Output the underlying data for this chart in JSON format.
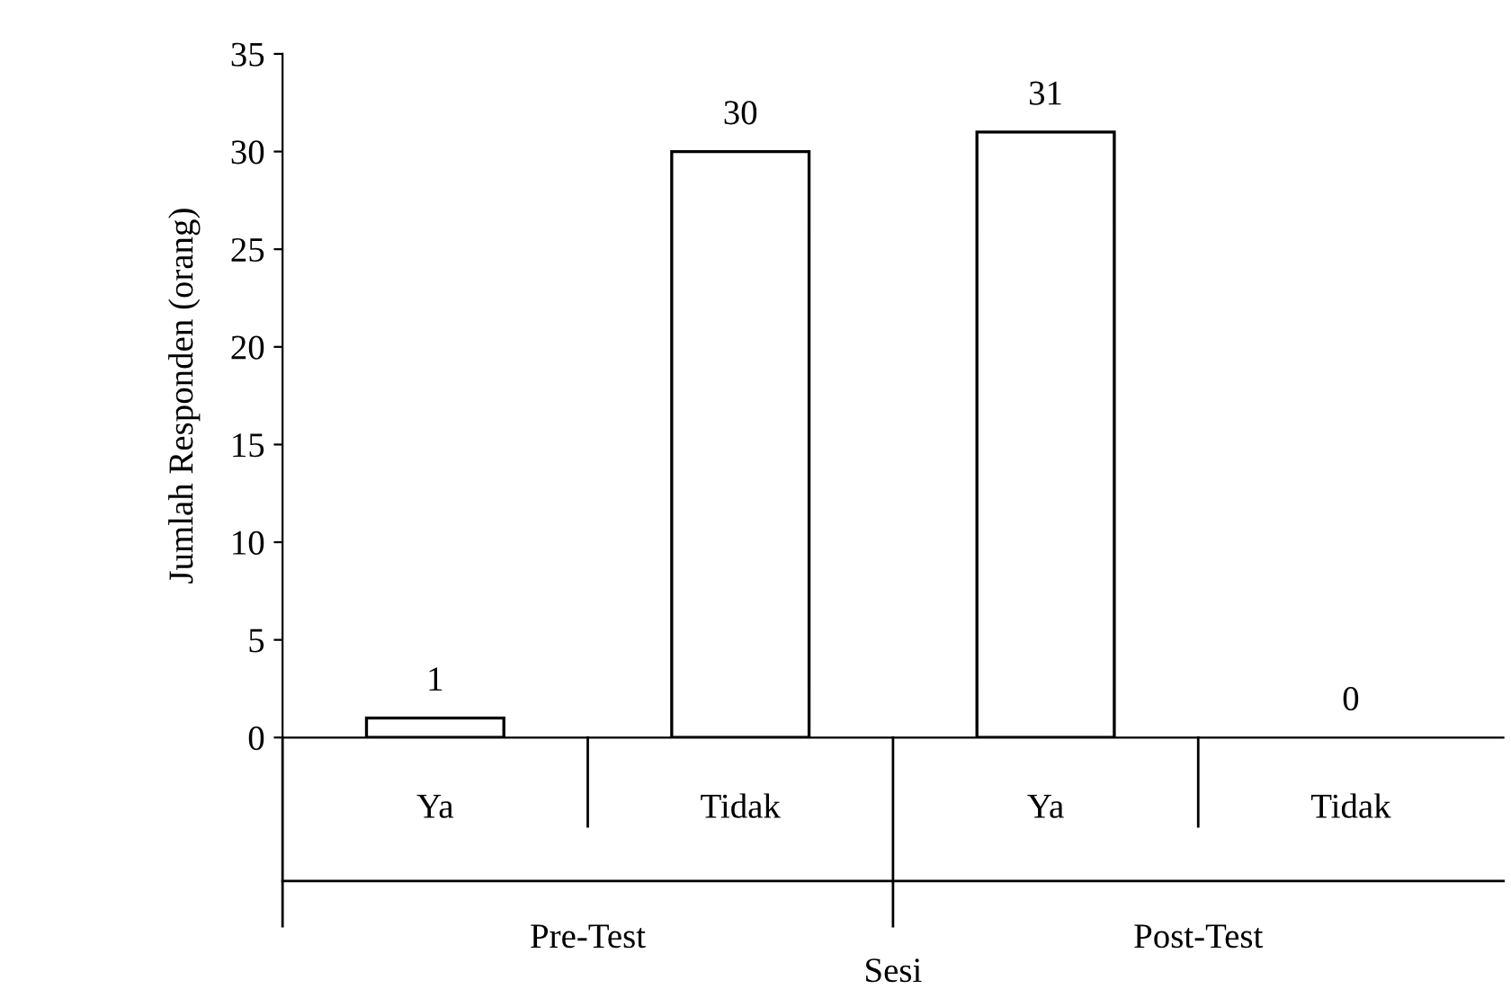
{
  "chart_data": {
    "type": "bar",
    "xlabel": "Sesi",
    "ylabel": "Jumlah Responden (orang)",
    "categories": [
      "Ya",
      "Tidak",
      "Ya",
      "Tidak"
    ],
    "values": [
      1,
      30,
      31,
      0
    ],
    "color": "#ffffff",
    "ylim": [
      0,
      35
    ],
    "yticks": [
      0,
      5,
      10,
      15,
      20,
      25,
      30,
      35
    ],
    "data_labels": true,
    "grid": false,
    "annotations": [
      "Pre-Test",
      "Post-Test"
    ]
  }
}
